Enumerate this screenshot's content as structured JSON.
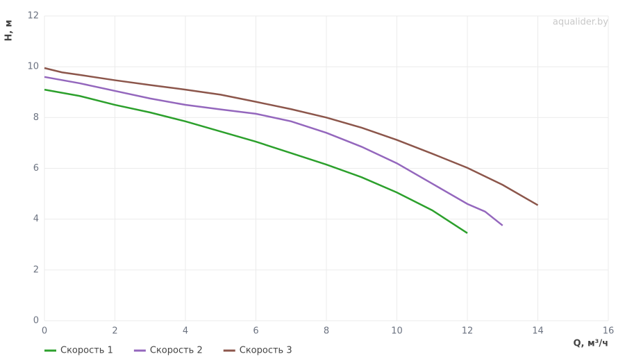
{
  "chart_data": {
    "type": "line",
    "watermark": "aqualider.by",
    "x_label": "Q, м³/ч",
    "y_label": "H, м",
    "xlim": [
      0,
      16
    ],
    "xticks": [
      0,
      2,
      4,
      6,
      8,
      10,
      12,
      14,
      16
    ],
    "ylim": [
      0,
      12
    ],
    "yticks": [
      0,
      2,
      4,
      6,
      8,
      10,
      12
    ],
    "grid": true,
    "legend": "bottom-left",
    "series": [
      {
        "name": "Скорость 1",
        "color": "#2ca02c",
        "x": [
          0,
          1,
          2,
          3,
          4,
          5,
          6,
          7,
          8,
          9,
          10,
          11,
          12
        ],
        "values": [
          9.1,
          8.85,
          8.5,
          8.2,
          7.85,
          7.45,
          7.05,
          6.6,
          6.15,
          5.65,
          5.05,
          4.35,
          3.45
        ]
      },
      {
        "name": "Скорость 2",
        "color": "#9467bd",
        "x": [
          0,
          1,
          2,
          3,
          4,
          5,
          6,
          7,
          8,
          9,
          10,
          11,
          12,
          12.5,
          13
        ],
        "values": [
          9.6,
          9.35,
          9.05,
          8.75,
          8.5,
          8.32,
          8.15,
          7.85,
          7.4,
          6.85,
          6.2,
          5.4,
          4.6,
          4.3,
          3.75
        ]
      },
      {
        "name": "Скорость 3",
        "color": "#8c564b",
        "x": [
          0,
          0.5,
          1,
          2,
          3,
          4,
          5,
          6,
          7,
          8,
          9,
          10,
          11,
          12,
          13,
          14
        ],
        "values": [
          9.95,
          9.78,
          9.68,
          9.47,
          9.28,
          9.1,
          8.9,
          8.62,
          8.33,
          8.0,
          7.6,
          7.12,
          6.58,
          6.02,
          5.35,
          4.55
        ]
      }
    ]
  }
}
